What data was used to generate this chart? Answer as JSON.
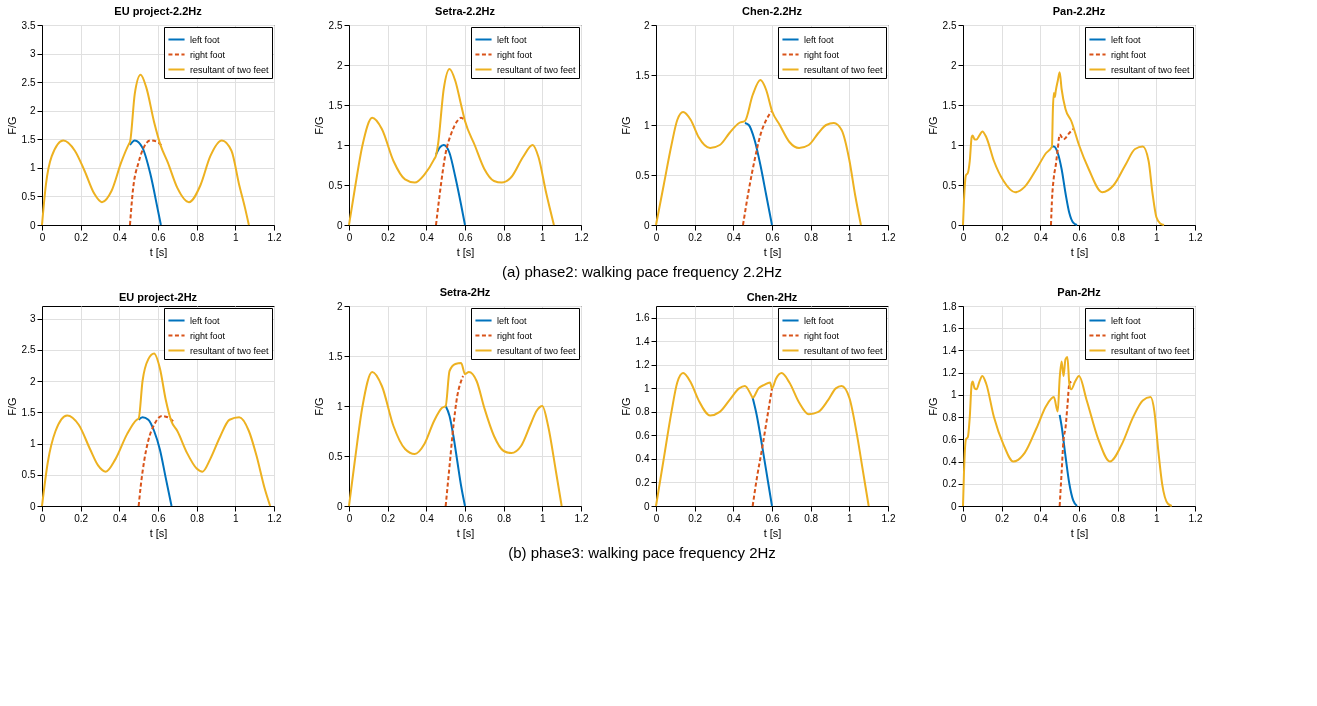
{
  "chart_data": [
    {
      "type": "line",
      "title": "EU project-2.2Hz",
      "xlabel": "t [s]",
      "ylabel": "F/G",
      "xlim": [
        0,
        1.2
      ],
      "xticks": [
        0,
        0.2,
        0.4,
        0.6,
        0.8,
        1,
        1.2
      ],
      "ylim": [
        0,
        3.5
      ],
      "yticks": [
        0,
        0.5,
        1,
        1.5,
        2,
        2.5,
        3,
        3.5
      ],
      "grid": true,
      "legend": "top right",
      "annotations": [
        "(a) phase2: walking pace frequency 2.2Hz"
      ],
      "series": [
        {
          "name": "left foot",
          "color": "#0072bd",
          "line_style": "solid",
          "x": [
            0.455,
            0.48,
            0.52,
            0.56,
            0.6,
            0.615
          ],
          "values": [
            1.4,
            1.48,
            1.35,
            0.9,
            0.25,
            0
          ]
        },
        {
          "name": "right foot",
          "color": "#d95319",
          "line_style": "dashed",
          "x": [
            0.455,
            0.47,
            0.5,
            0.53,
            0.56,
            0.6,
            0.62
          ],
          "values": [
            0,
            0.6,
            1.1,
            1.38,
            1.48,
            1.45,
            1.38
          ]
        },
        {
          "name": "resultant of two feet",
          "color": "#edb120",
          "line_style": "solid",
          "x": [
            0,
            0.02,
            0.05,
            0.11,
            0.17,
            0.22,
            0.27,
            0.31,
            0.36,
            0.41,
            0.45,
            0.455,
            0.48,
            0.51,
            0.54,
            0.58,
            0.615,
            0.65,
            0.7,
            0.76,
            0.82,
            0.87,
            0.93,
            0.98,
            1.02,
            1.05,
            1.07
          ],
          "values": [
            0,
            0.7,
            1.2,
            1.48,
            1.3,
            0.95,
            0.55,
            0.4,
            0.6,
            1.1,
            1.42,
            1.45,
            2.3,
            2.63,
            2.4,
            1.8,
            1.38,
            1.1,
            0.65,
            0.4,
            0.7,
            1.2,
            1.48,
            1.3,
            0.7,
            0.3,
            0
          ]
        }
      ]
    },
    {
      "type": "line",
      "title": "Setra-2.2Hz",
      "xlabel": "t [s]",
      "ylabel": "F/G",
      "xlim": [
        0,
        1.2
      ],
      "xticks": [
        0,
        0.2,
        0.4,
        0.6,
        0.8,
        1,
        1.2
      ],
      "ylim": [
        0,
        2.5
      ],
      "yticks": [
        0,
        0.5,
        1,
        1.5,
        2,
        2.5
      ],
      "grid": true,
      "legend": "top right",
      "series": [
        {
          "name": "left foot",
          "color": "#0072bd",
          "line_style": "solid",
          "x": [
            0.45,
            0.47,
            0.49,
            0.52,
            0.55,
            0.58,
            0.6
          ],
          "values": [
            0.88,
            0.97,
            1.0,
            0.9,
            0.6,
            0.25,
            0
          ]
        },
        {
          "name": "right foot",
          "color": "#d95319",
          "line_style": "dashed",
          "x": [
            0.45,
            0.47,
            0.5,
            0.53,
            0.56,
            0.58,
            0.6
          ],
          "values": [
            0,
            0.4,
            0.9,
            1.15,
            1.3,
            1.34,
            1.3
          ]
        },
        {
          "name": "resultant of two feet",
          "color": "#edb120",
          "line_style": "solid",
          "x": [
            0,
            0.03,
            0.07,
            0.12,
            0.17,
            0.23,
            0.29,
            0.34,
            0.39,
            0.44,
            0.45,
            0.46,
            0.49,
            0.52,
            0.55,
            0.58,
            0.6,
            0.65,
            0.7,
            0.75,
            0.79,
            0.84,
            0.9,
            0.95,
            0.98,
            1.02,
            1.06
          ],
          "values": [
            0,
            0.45,
            1.0,
            1.34,
            1.2,
            0.8,
            0.57,
            0.53,
            0.63,
            0.82,
            0.87,
            1.0,
            1.7,
            1.95,
            1.8,
            1.5,
            1.3,
            1.0,
            0.7,
            0.55,
            0.53,
            0.6,
            0.85,
            1.0,
            0.85,
            0.4,
            0
          ]
        }
      ]
    },
    {
      "type": "line",
      "title": "Chen-2.2Hz",
      "xlabel": "t [s]",
      "ylabel": "F/G",
      "xlim": [
        0,
        1.2
      ],
      "xticks": [
        0,
        0.2,
        0.4,
        0.6,
        0.8,
        1,
        1.2
      ],
      "ylim": [
        0,
        2
      ],
      "yticks": [
        0,
        0.5,
        1,
        1.5,
        2
      ],
      "grid": true,
      "legend": "top right",
      "series": [
        {
          "name": "left foot",
          "color": "#0072bd",
          "line_style": "solid",
          "x": [
            0.46,
            0.48,
            0.51,
            0.54,
            0.57,
            0.6
          ],
          "values": [
            1.02,
            1.0,
            0.85,
            0.6,
            0.3,
            0
          ]
        },
        {
          "name": "right foot",
          "color": "#d95319",
          "line_style": "dashed",
          "x": [
            0.45,
            0.48,
            0.51,
            0.54,
            0.57,
            0.6
          ],
          "values": [
            0,
            0.35,
            0.65,
            0.9,
            1.05,
            1.14
          ]
        },
        {
          "name": "resultant of two feet",
          "color": "#edb120",
          "line_style": "solid",
          "x": [
            0,
            0.04,
            0.08,
            0.11,
            0.14,
            0.18,
            0.22,
            0.28,
            0.33,
            0.38,
            0.43,
            0.46,
            0.5,
            0.54,
            0.57,
            0.6,
            0.64,
            0.69,
            0.74,
            0.79,
            0.84,
            0.88,
            0.92,
            0.96,
            1.0,
            1.03,
            1.06
          ],
          "values": [
            0,
            0.4,
            0.8,
            1.05,
            1.13,
            1.05,
            0.88,
            0.77,
            0.8,
            0.92,
            1.02,
            1.04,
            1.3,
            1.45,
            1.35,
            1.14,
            1.0,
            0.83,
            0.77,
            0.8,
            0.92,
            1.0,
            1.02,
            0.95,
            0.65,
            0.3,
            0
          ]
        }
      ]
    },
    {
      "type": "line",
      "title": "Pan-2.2Hz",
      "xlabel": "t [s]",
      "ylabel": "F/G",
      "xlim": [
        0,
        1.2
      ],
      "xticks": [
        0,
        0.2,
        0.4,
        0.6,
        0.8,
        1,
        1.2
      ],
      "ylim": [
        0,
        2.5
      ],
      "yticks": [
        0,
        0.5,
        1,
        1.5,
        2,
        2.5
      ],
      "grid": true,
      "legend": "top right",
      "series": [
        {
          "name": "left foot",
          "color": "#0072bd",
          "line_style": "solid",
          "x": [
            0.46,
            0.47,
            0.49,
            0.51,
            0.53,
            0.55,
            0.57,
            0.59
          ],
          "values": [
            0.98,
            0.98,
            0.9,
            0.7,
            0.4,
            0.15,
            0.03,
            0
          ]
        },
        {
          "name": "right foot",
          "color": "#d95319",
          "line_style": "dashed",
          "x": [
            0.455,
            0.46,
            0.47,
            0.48,
            0.49,
            0.5,
            0.52,
            0.55,
            0.57
          ],
          "values": [
            0,
            0.3,
            0.6,
            0.75,
            0.95,
            1.13,
            1.07,
            1.15,
            1.2
          ]
        },
        {
          "name": "resultant of two feet",
          "color": "#edb120",
          "line_style": "solid",
          "x": [
            0,
            0.005,
            0.015,
            0.025,
            0.035,
            0.045,
            0.05,
            0.06,
            0.07,
            0.085,
            0.1,
            0.12,
            0.16,
            0.21,
            0.27,
            0.32,
            0.38,
            0.43,
            0.46,
            0.465,
            0.47,
            0.475,
            0.48,
            0.49,
            0.5,
            0.51,
            0.53,
            0.56,
            0.6,
            0.65,
            0.72,
            0.78,
            0.84,
            0.89,
            0.93,
            0.96,
            0.98,
            1.0,
            1.02,
            1.04
          ],
          "values": [
            0,
            0.3,
            0.62,
            0.65,
            0.8,
            1.1,
            1.12,
            1.07,
            1.07,
            1.12,
            1.17,
            1.1,
            0.8,
            0.55,
            0.41,
            0.48,
            0.7,
            0.9,
            0.98,
            1.45,
            1.65,
            1.6,
            1.68,
            1.8,
            1.91,
            1.7,
            1.45,
            1.3,
            1.0,
            0.7,
            0.41,
            0.5,
            0.75,
            0.95,
            0.98,
            0.8,
            0.4,
            0.1,
            0.02,
            0
          ]
        }
      ]
    },
    {
      "type": "line",
      "title": "EU project-2Hz",
      "xlabel": "t [s]",
      "ylabel": "F/G",
      "xlim": [
        0,
        1.2
      ],
      "xticks": [
        0,
        0.2,
        0.4,
        0.6,
        0.8,
        1,
        1.2
      ],
      "ylim": [
        0,
        3.2
      ],
      "yticks": [
        0,
        0.5,
        1,
        1.5,
        2,
        2.5,
        3
      ],
      "grid": true,
      "legend": "top right",
      "annotations": [
        "(b) phase3: walking pace frequency 2Hz"
      ],
      "series": [
        {
          "name": "left foot",
          "color": "#0072bd",
          "line_style": "solid",
          "x": [
            0.5,
            0.52,
            0.55,
            0.58,
            0.61,
            0.64,
            0.67
          ],
          "values": [
            1.38,
            1.42,
            1.38,
            1.2,
            0.9,
            0.45,
            0
          ]
        },
        {
          "name": "right foot",
          "color": "#d95319",
          "line_style": "dashed",
          "x": [
            0.5,
            0.51,
            0.53,
            0.55,
            0.58,
            0.62,
            0.65,
            0.68
          ],
          "values": [
            0,
            0.3,
            0.75,
            1.05,
            1.3,
            1.44,
            1.42,
            1.35
          ]
        },
        {
          "name": "resultant of two feet",
          "color": "#edb120",
          "line_style": "solid",
          "x": [
            0,
            0.03,
            0.07,
            0.13,
            0.19,
            0.25,
            0.29,
            0.33,
            0.38,
            0.44,
            0.49,
            0.5,
            0.52,
            0.55,
            0.58,
            0.61,
            0.64,
            0.67,
            0.7,
            0.75,
            0.8,
            0.83,
            0.87,
            0.92,
            0.97,
            1.02,
            1.07,
            1.11,
            1.15,
            1.18
          ],
          "values": [
            0,
            0.7,
            1.2,
            1.45,
            1.3,
            0.9,
            0.65,
            0.55,
            0.75,
            1.15,
            1.38,
            1.4,
            2.0,
            2.35,
            2.44,
            2.2,
            1.7,
            1.35,
            1.2,
            0.85,
            0.6,
            0.55,
            0.75,
            1.1,
            1.38,
            1.42,
            1.2,
            0.8,
            0.3,
            0
          ]
        }
      ]
    },
    {
      "type": "line",
      "title": "Setra-2Hz",
      "xlabel": "t [s]",
      "ylabel": "F/G",
      "xlim": [
        0,
        1.2
      ],
      "xticks": [
        0,
        0.2,
        0.4,
        0.6,
        0.8,
        1,
        1.2
      ],
      "ylim": [
        0,
        2
      ],
      "yticks": [
        0,
        0.5,
        1,
        1.5,
        2
      ],
      "grid": true,
      "legend": "top right",
      "series": [
        {
          "name": "left foot",
          "color": "#0072bd",
          "line_style": "solid",
          "x": [
            0.5,
            0.52,
            0.54,
            0.56,
            0.58,
            0.6
          ],
          "values": [
            1.0,
            0.9,
            0.7,
            0.45,
            0.2,
            0
          ]
        },
        {
          "name": "right foot",
          "color": "#d95319",
          "line_style": "dashed",
          "x": [
            0.5,
            0.52,
            0.54,
            0.56,
            0.58,
            0.59
          ],
          "values": [
            0,
            0.4,
            0.8,
            1.1,
            1.25,
            1.3
          ]
        },
        {
          "name": "resultant of two feet",
          "color": "#edb120",
          "line_style": "solid",
          "x": [
            0,
            0.03,
            0.07,
            0.12,
            0.17,
            0.23,
            0.29,
            0.34,
            0.39,
            0.44,
            0.48,
            0.5,
            0.52,
            0.55,
            0.58,
            0.6,
            0.62,
            0.66,
            0.7,
            0.75,
            0.8,
            0.84,
            0.89,
            0.94,
            0.97,
            1.0,
            1.03,
            1.07,
            1.1
          ],
          "values": [
            0,
            0.45,
            1.0,
            1.34,
            1.2,
            0.8,
            0.57,
            0.52,
            0.62,
            0.85,
            0.98,
            1.0,
            1.35,
            1.42,
            1.43,
            1.32,
            1.34,
            1.25,
            0.98,
            0.7,
            0.55,
            0.53,
            0.6,
            0.82,
            0.95,
            1.0,
            0.8,
            0.35,
            0
          ]
        }
      ]
    },
    {
      "type": "line",
      "title": "Chen-2Hz",
      "xlabel": "t [s]",
      "ylabel": "F/G",
      "xlim": [
        0,
        1.2
      ],
      "xticks": [
        0,
        0.2,
        0.4,
        0.6,
        0.8,
        1,
        1.2
      ],
      "ylim": [
        0,
        1.7
      ],
      "yticks": [
        0,
        0.2,
        0.4,
        0.6,
        0.8,
        1,
        1.2,
        1.4,
        1.6
      ],
      "grid": true,
      "legend": "top right",
      "series": [
        {
          "name": "left foot",
          "color": "#0072bd",
          "line_style": "solid",
          "x": [
            0.5,
            0.52,
            0.55,
            0.58,
            0.6
          ],
          "values": [
            0.92,
            0.78,
            0.5,
            0.2,
            0
          ]
        },
        {
          "name": "right foot",
          "color": "#d95319",
          "line_style": "dashed",
          "x": [
            0.5,
            0.52,
            0.55,
            0.58,
            0.6
          ],
          "values": [
            0,
            0.22,
            0.5,
            0.8,
            1.0
          ]
        },
        {
          "name": "resultant of two feet",
          "color": "#edb120",
          "line_style": "solid",
          "x": [
            0,
            0.04,
            0.08,
            0.11,
            0.14,
            0.18,
            0.22,
            0.28,
            0.33,
            0.38,
            0.43,
            0.46,
            0.49,
            0.5,
            0.53,
            0.56,
            0.59,
            0.6,
            0.62,
            0.65,
            0.69,
            0.74,
            0.79,
            0.84,
            0.89,
            0.93,
            0.96,
            1.0,
            1.04,
            1.07,
            1.1
          ],
          "values": [
            0,
            0.4,
            0.8,
            1.05,
            1.13,
            1.05,
            0.9,
            0.77,
            0.8,
            0.9,
            1.0,
            1.02,
            0.95,
            0.92,
            1.0,
            1.03,
            1.05,
            1.0,
            1.08,
            1.13,
            1.05,
            0.88,
            0.78,
            0.8,
            0.9,
            1.0,
            1.02,
            0.92,
            0.6,
            0.3,
            0
          ]
        }
      ]
    },
    {
      "type": "line",
      "title": "Pan-2Hz",
      "xlabel": "t [s]",
      "ylabel": "F/G",
      "xlim": [
        0,
        1.2
      ],
      "xticks": [
        0,
        0.2,
        0.4,
        0.6,
        0.8,
        1,
        1.2
      ],
      "ylim": [
        0,
        1.8
      ],
      "yticks": [
        0,
        0.2,
        0.4,
        0.6,
        0.8,
        1,
        1.2,
        1.4,
        1.6,
        1.8
      ],
      "grid": true,
      "legend": "top right",
      "series": [
        {
          "name": "left foot",
          "color": "#0072bd",
          "line_style": "solid",
          "x": [
            0.5,
            0.51,
            0.53,
            0.55,
            0.57,
            0.59
          ],
          "values": [
            0.82,
            0.72,
            0.45,
            0.2,
            0.05,
            0
          ]
        },
        {
          "name": "right foot",
          "color": "#d95319",
          "line_style": "dashed",
          "x": [
            0.5,
            0.51,
            0.52,
            0.53,
            0.54,
            0.55,
            0.56
          ],
          "values": [
            0,
            0.3,
            0.6,
            0.7,
            0.9,
            1.1,
            1.12
          ]
        },
        {
          "name": "resultant of two feet",
          "color": "#edb120",
          "line_style": "solid",
          "x": [
            0,
            0.005,
            0.015,
            0.025,
            0.035,
            0.045,
            0.05,
            0.06,
            0.07,
            0.085,
            0.1,
            0.12,
            0.16,
            0.21,
            0.26,
            0.32,
            0.38,
            0.43,
            0.47,
            0.49,
            0.5,
            0.51,
            0.52,
            0.53,
            0.54,
            0.55,
            0.56,
            0.58,
            0.6,
            0.64,
            0.7,
            0.76,
            0.82,
            0.88,
            0.93,
            0.97,
            0.99,
            1.01,
            1.03,
            1.06,
            1.08
          ],
          "values": [
            0,
            0.3,
            0.6,
            0.62,
            0.8,
            1.1,
            1.12,
            1.06,
            1.05,
            1.12,
            1.17,
            1.1,
            0.8,
            0.55,
            0.4,
            0.48,
            0.7,
            0.9,
            0.98,
            0.85,
            1.15,
            1.3,
            1.17,
            1.32,
            1.34,
            1.1,
            1.05,
            1.12,
            1.17,
            0.95,
            0.6,
            0.4,
            0.55,
            0.8,
            0.95,
            0.98,
            0.85,
            0.5,
            0.2,
            0.02,
            0
          ]
        }
      ]
    }
  ]
}
